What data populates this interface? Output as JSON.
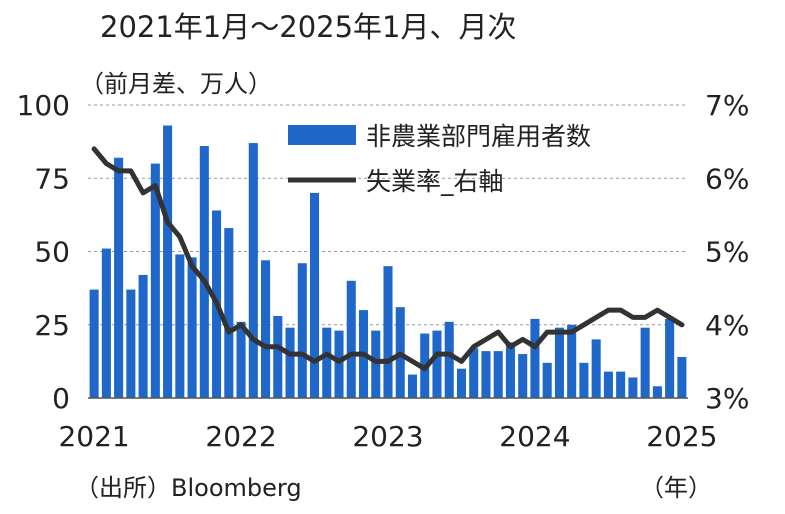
{
  "chart_data": {
    "type": "bar+line",
    "title": "2021年1月～2025年1月、月次",
    "left_axis_label": "（前月差、万人）",
    "source": "（出所）Bloomberg",
    "x_unit": "（年）",
    "y_left": {
      "ticks": [
        0,
        25,
        50,
        75,
        100
      ],
      "range": [
        0,
        100
      ]
    },
    "y_right": {
      "ticks": [
        "3%",
        "4%",
        "5%",
        "6%",
        "7%"
      ],
      "range": [
        3,
        7
      ]
    },
    "x_ticks": [
      "2021",
      "2022",
      "2023",
      "2024",
      "2025"
    ],
    "grid": "horizontal dashed",
    "legend_position": "top-right",
    "months": [
      "2021-01",
      "2021-02",
      "2021-03",
      "2021-04",
      "2021-05",
      "2021-06",
      "2021-07",
      "2021-08",
      "2021-09",
      "2021-10",
      "2021-11",
      "2021-12",
      "2022-01",
      "2022-02",
      "2022-03",
      "2022-04",
      "2022-05",
      "2022-06",
      "2022-07",
      "2022-08",
      "2022-09",
      "2022-10",
      "2022-11",
      "2022-12",
      "2023-01",
      "2023-02",
      "2023-03",
      "2023-04",
      "2023-05",
      "2023-06",
      "2023-07",
      "2023-08",
      "2023-09",
      "2023-10",
      "2023-11",
      "2023-12",
      "2024-01",
      "2024-02",
      "2024-03",
      "2024-04",
      "2024-05",
      "2024-06",
      "2024-07",
      "2024-08",
      "2024-09",
      "2024-10",
      "2024-11",
      "2024-12",
      "2025-01"
    ],
    "series": [
      {
        "name": "非農業部門雇用者数",
        "kind": "bar",
        "axis": "left",
        "color": "#1f67c9",
        "values": [
          37,
          51,
          82,
          37,
          42,
          80,
          93,
          49,
          48,
          86,
          64,
          58,
          26,
          87,
          47,
          28,
          24,
          46,
          70,
          24,
          23,
          40,
          30,
          23,
          45,
          31,
          8,
          22,
          23,
          26,
          10,
          17,
          16,
          16,
          19,
          15,
          27,
          12,
          24,
          25,
          12,
          20,
          9,
          9,
          7,
          24,
          4,
          27,
          14
        ]
      },
      {
        "name": "失業率_右軸",
        "kind": "line",
        "axis": "right",
        "color": "#333333",
        "values": [
          6.4,
          6.2,
          6.1,
          6.1,
          5.8,
          5.9,
          5.4,
          5.2,
          4.8,
          4.6,
          4.3,
          3.9,
          4.0,
          3.8,
          3.7,
          3.7,
          3.6,
          3.6,
          3.5,
          3.6,
          3.5,
          3.6,
          3.6,
          3.5,
          3.5,
          3.6,
          3.5,
          3.4,
          3.6,
          3.6,
          3.5,
          3.7,
          3.8,
          3.9,
          3.7,
          3.8,
          3.7,
          3.9,
          3.9,
          3.9,
          4.0,
          4.1,
          4.2,
          4.2,
          4.1,
          4.1,
          4.2,
          4.1,
          4.0
        ]
      }
    ]
  }
}
